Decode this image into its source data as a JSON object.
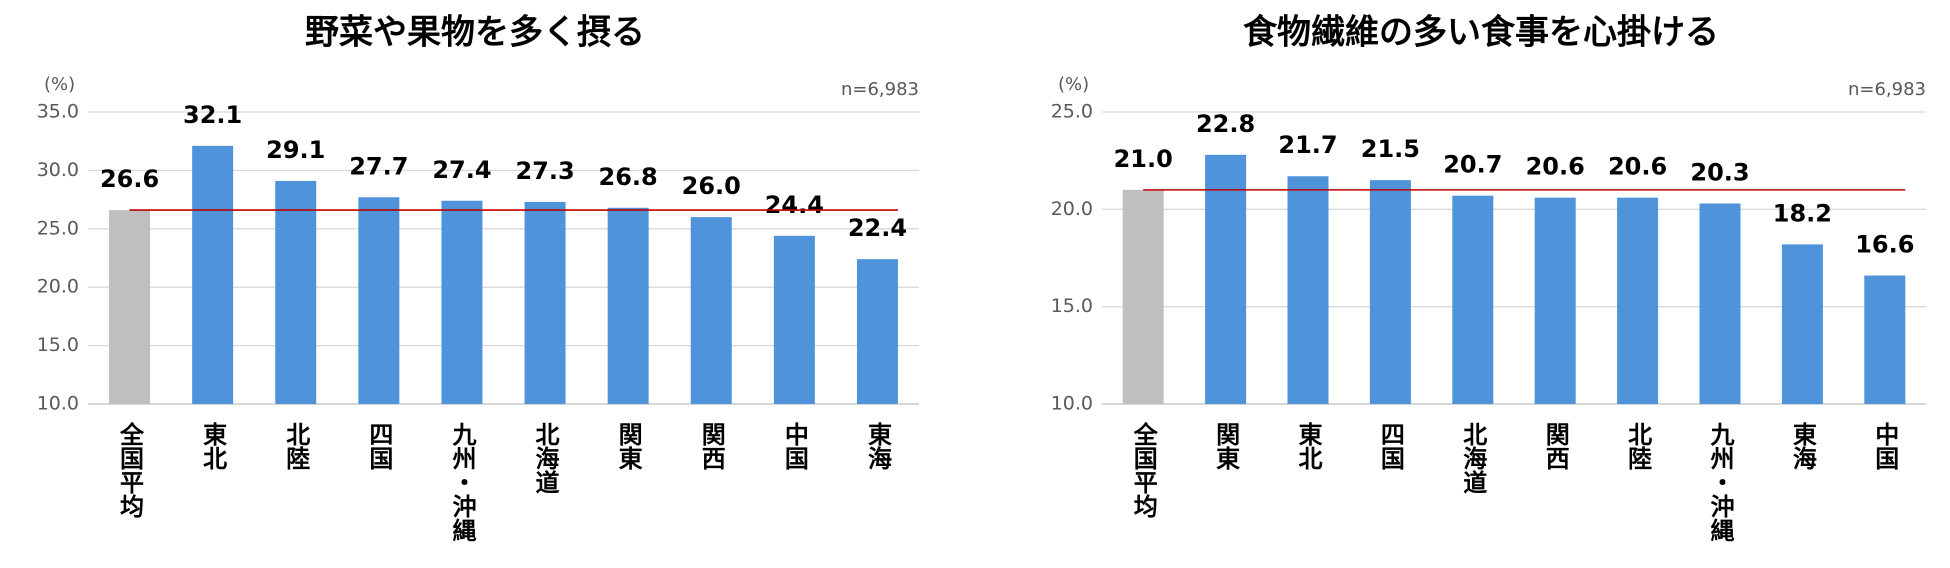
{
  "chart_data": [
    {
      "type": "bar",
      "title": "野菜や果物を多く摂る",
      "unit_label": "(%)",
      "note": "n=6,983",
      "categories": [
        "全国平均",
        "東北",
        "北陸",
        "四国",
        "九州・沖縄",
        "北海道",
        "関東",
        "関西",
        "中国",
        "東海"
      ],
      "values": [
        26.6,
        32.1,
        29.1,
        27.7,
        27.4,
        27.3,
        26.8,
        26.0,
        24.4,
        22.4
      ],
      "value_labels": [
        "26.6",
        "32.1",
        "29.1",
        "27.7",
        "27.4",
        "27.3",
        "26.8",
        "26.0",
        "24.4",
        "22.4"
      ],
      "colors": [
        "#bfbfbf",
        "#4f94db",
        "#4f94db",
        "#4f94db",
        "#4f94db",
        "#4f94db",
        "#4f94db",
        "#4f94db",
        "#4f94db",
        "#4f94db"
      ],
      "reference_line_color": "#c00000",
      "ylim": [
        10,
        35
      ],
      "yticks": [
        {
          "value": 10,
          "label": "10.0"
        },
        {
          "value": 15,
          "label": "15.0"
        },
        {
          "value": 20,
          "label": "20.0"
        },
        {
          "value": 25,
          "label": "25.0"
        },
        {
          "value": 30,
          "label": "30.0"
        },
        {
          "value": 35,
          "label": "35.0"
        }
      ],
      "grid": true
    },
    {
      "type": "bar",
      "title": "食物繊維の多い食事を心掛ける",
      "unit_label": "(%)",
      "note": "n=6,983",
      "categories": [
        "全国平均",
        "関東",
        "東北",
        "四国",
        "北海道",
        "関西",
        "北陸",
        "九州・沖縄",
        "東海",
        "中国"
      ],
      "values": [
        21.0,
        22.8,
        21.7,
        21.5,
        20.7,
        20.6,
        20.6,
        20.3,
        18.2,
        16.6
      ],
      "value_labels": [
        "21.0",
        "22.8",
        "21.7",
        "21.5",
        "20.7",
        "20.6",
        "20.6",
        "20.3",
        "18.2",
        "16.6"
      ],
      "colors": [
        "#bfbfbf",
        "#4f94db",
        "#4f94db",
        "#4f94db",
        "#4f94db",
        "#4f94db",
        "#4f94db",
        "#4f94db",
        "#4f94db",
        "#4f94db"
      ],
      "reference_line_color": "#c00000",
      "ylim": [
        10,
        25
      ],
      "yticks": [
        {
          "value": 10,
          "label": "10.0"
        },
        {
          "value": 15,
          "label": "15.0"
        },
        {
          "value": 20,
          "label": "20.0"
        },
        {
          "value": 25,
          "label": "25.0"
        }
      ],
      "grid": true
    }
  ]
}
